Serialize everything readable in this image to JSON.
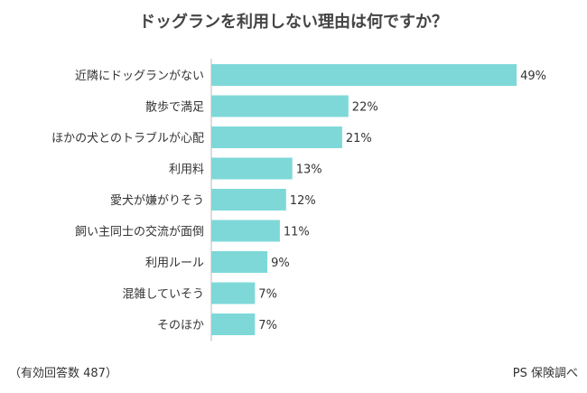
{
  "title": "ドッグランを利用しない理由は何ですか？",
  "footnote": "（有効回答数 487）",
  "source": "PS 保険調べ",
  "colors": {
    "bar": "#7fd8d8",
    "axis": "#bbbbbb",
    "text": "#333333"
  },
  "chart_data": {
    "type": "bar",
    "orientation": "horizontal",
    "title": "ドッグランを利用しない理由は何ですか？",
    "categories": [
      "近隣にドッグランがない",
      "散歩で満足",
      "ほかの犬とのトラブルが心配",
      "利用料",
      "愛犬が嫌がりそう",
      "飼い主同士の交流が面倒",
      "利用ルール",
      "混雑していそう",
      "そのほか"
    ],
    "values": [
      49,
      22,
      21,
      13,
      12,
      11,
      9,
      7,
      7
    ],
    "value_labels": [
      "49%",
      "22%",
      "21%",
      "13%",
      "12%",
      "11%",
      "9%",
      "7%",
      "7%"
    ],
    "xlim": [
      0,
      100
    ],
    "grid": false,
    "legend": "none"
  }
}
